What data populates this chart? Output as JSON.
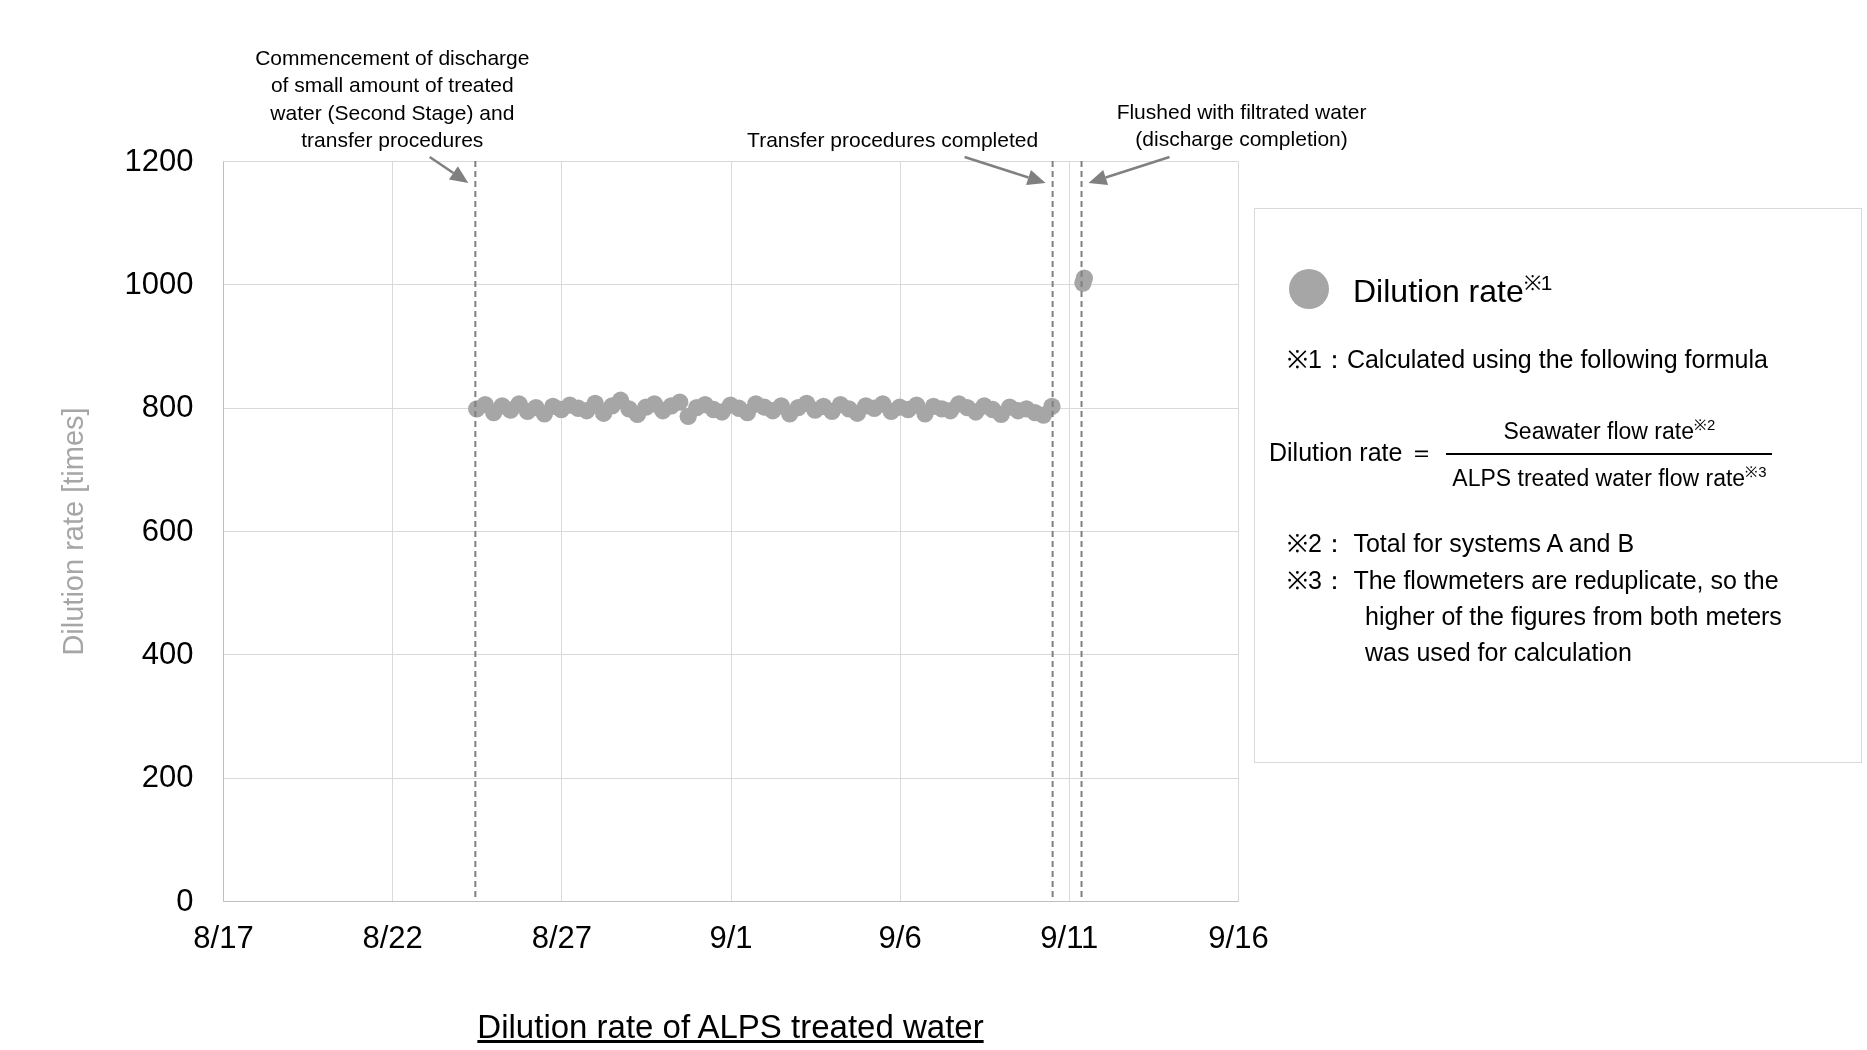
{
  "chart_data": {
    "type": "scatter",
    "title": "Dilution rate of ALPS treated water",
    "ylabel": "Dilution rate [times]",
    "xlim": [
      "--08-17",
      "--09-16"
    ],
    "xticks": [
      {
        "value": "--08-17",
        "label": "8/17"
      },
      {
        "value": "--08-22",
        "label": "8/22"
      },
      {
        "value": "--08-27",
        "label": "8/27"
      },
      {
        "value": "--09-01",
        "label": "9/1"
      },
      {
        "value": "--09-06",
        "label": "9/6"
      },
      {
        "value": "--09-11",
        "label": "9/11"
      },
      {
        "value": "--09-16",
        "label": "9/16"
      }
    ],
    "ylim": [
      0,
      1200
    ],
    "yticks": [
      0,
      200,
      400,
      600,
      800,
      1000,
      1200
    ],
    "grid": true,
    "legend": "right",
    "marker": "circle",
    "series": [
      {
        "name": "Dilution rate$^{※1}$",
        "color": "#a6a6a6",
        "x": [
          "--08-24T12:00",
          "--08-24T18:00",
          "--08-25T00:00",
          "--08-25T06:00",
          "--08-25T12:00",
          "--08-25T18:00",
          "--08-26T00:00",
          "--08-26T06:00",
          "--08-26T12:00",
          "--08-26T18:00",
          "--08-27T00:00",
          "--08-27T06:00",
          "--08-27T12:00",
          "--08-27T18:00",
          "--08-28T00:00",
          "--08-28T06:00",
          "--08-28T12:00",
          "--08-28T18:00",
          "--08-29T00:00",
          "--08-29T06:00",
          "--08-29T12:00",
          "--08-29T18:00",
          "--08-30T00:00",
          "--08-30T06:00",
          "--08-30T12:00",
          "--08-30T18:00",
          "--08-31T00:00",
          "--08-31T06:00",
          "--08-31T12:00",
          "--08-31T18:00",
          "--09-01T00:00",
          "--09-01T06:00",
          "--09-01T12:00",
          "--09-01T18:00",
          "--09-02T00:00",
          "--09-02T06:00",
          "--09-02T12:00",
          "--09-02T18:00",
          "--09-03T00:00",
          "--09-03T06:00",
          "--09-03T12:00",
          "--09-03T18:00",
          "--09-04T00:00",
          "--09-04T06:00",
          "--09-04T12:00",
          "--09-04T18:00",
          "--09-05T00:00",
          "--09-05T06:00",
          "--09-05T12:00",
          "--09-05T18:00",
          "--09-06T00:00",
          "--09-06T06:00",
          "--09-06T12:00",
          "--09-06T18:00",
          "--09-07T00:00",
          "--09-07T06:00",
          "--09-07T12:00",
          "--09-07T18:00",
          "--09-08T00:00",
          "--09-08T06:00",
          "--09-08T12:00",
          "--09-08T18:00",
          "--09-09T00:00",
          "--09-09T06:00",
          "--09-09T12:00",
          "--09-09T18:00",
          "--09-10T00:00",
          "--09-10T06:00",
          "--09-10T12:00",
          "--09-11T10:00",
          "--09-11T11:00"
        ],
        "values": [
          798,
          805,
          792,
          803,
          796,
          806,
          794,
          800,
          790,
          802,
          797,
          804,
          799,
          795,
          807,
          791,
          803,
          812,
          798,
          789,
          801,
          806,
          795,
          803,
          809,
          786,
          800,
          805,
          797,
          793,
          804,
          799,
          792,
          806,
          801,
          795,
          803,
          790,
          800,
          807,
          796,
          802,
          794,
          805,
          798,
          791,
          803,
          799,
          806,
          794,
          801,
          797,
          804,
          790,
          802,
          798,
          795,
          806,
          800,
          793,
          803,
          797,
          789,
          801,
          795,
          798,
          792,
          788,
          802,
          1002,
          1010
        ]
      }
    ],
    "ref_lines": [
      {
        "axis": "x",
        "value": "--08-24T11:00",
        "label": "Commencement of discharge of small amount of treated water (Second Stage) and transfer procedures",
        "color": "#808080",
        "line_style": "dashed"
      },
      {
        "axis": "x",
        "value": "--09-10T12:30",
        "label": "Transfer procedures completed",
        "color": "#808080",
        "line_style": "dashed"
      },
      {
        "axis": "x",
        "value": "--09-11T09:00",
        "label": "Flushed with filtrated water (discharge completion)",
        "color": "#808080",
        "line_style": "dashed"
      }
    ],
    "annotations": [
      "※1：Calculated using the following formula",
      "Dilution rate ＝",
      "Seawater flow rate$^{※2}$",
      "ALPS treated water flow rate$^{※3}$",
      "※2： Total for systems A and B",
      "※3： The flowmeters are reduplicate, so the higher of the figures from both meters was used for calculation"
    ]
  }
}
